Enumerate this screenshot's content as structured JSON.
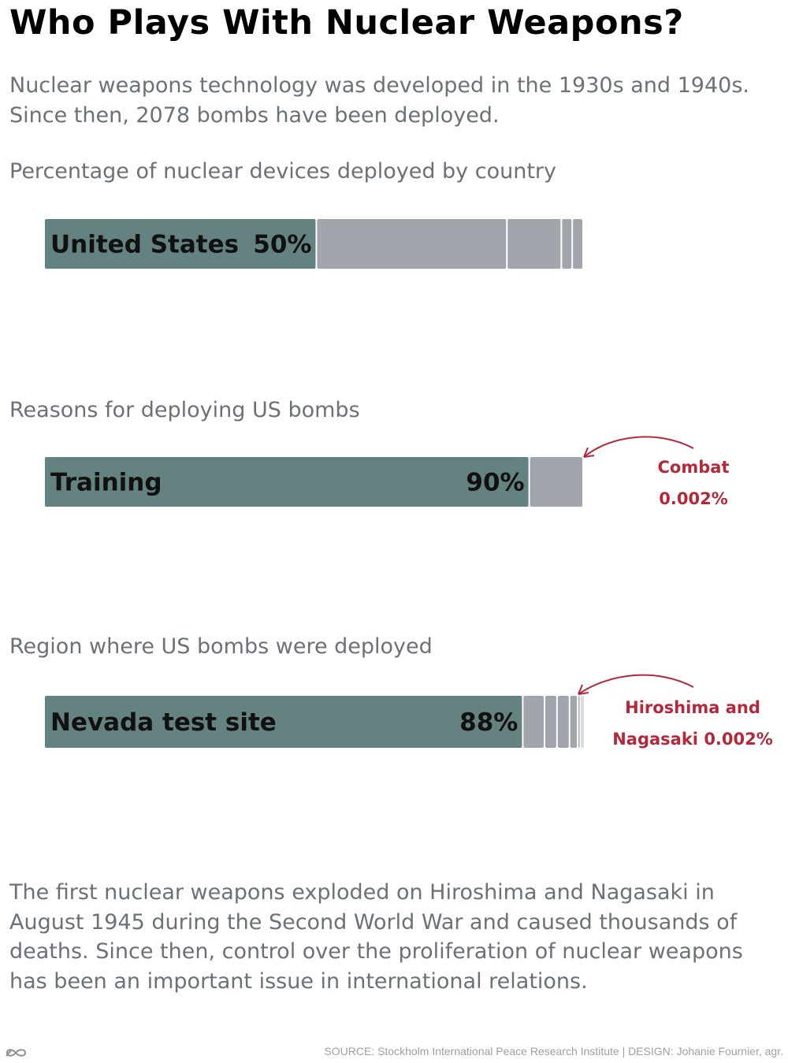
{
  "title": "Who Plays With Nuclear Weapons?",
  "intro": {
    "line1": "Nuclear weapons technology was developed in the 1930s and 1940s.",
    "line2": "Since then, 2078 bombs have been deployed."
  },
  "colors": {
    "highlight": "#64827f",
    "other": "#a0a6ab",
    "callout": "#b5283a"
  },
  "chart_data": [
    {
      "type": "bar",
      "title": "Percentage of nuclear devices deployed by country",
      "orientation": "horizontal-stacked",
      "series": [
        {
          "name": "United States",
          "value": 50,
          "value_label": "50%",
          "highlight": true
        },
        {
          "value": 35,
          "highlight": false
        },
        {
          "value": 10,
          "highlight": false
        },
        {
          "value": 2,
          "highlight": false
        },
        {
          "value": 2,
          "highlight": false
        }
      ]
    },
    {
      "type": "bar",
      "title": "Reasons for deploying US bombs",
      "orientation": "horizontal-stacked",
      "series": [
        {
          "name": "Training",
          "value": 90,
          "value_label": "90%",
          "highlight": true
        },
        {
          "value": 10,
          "highlight": false
        }
      ],
      "annotation": {
        "line1": "Combat",
        "line2": "0.002%"
      }
    },
    {
      "type": "bar",
      "title": "Region where US bombs were deployed",
      "orientation": "horizontal-stacked",
      "series": [
        {
          "name": "Nevada test site",
          "value": 88,
          "value_label": "88%",
          "highlight": true
        },
        {
          "value": 4,
          "highlight": false
        },
        {
          "value": 2.3,
          "highlight": false
        },
        {
          "value": 2.3,
          "highlight": false
        },
        {
          "value": 1.5,
          "highlight": false
        },
        {
          "value": 0.5,
          "highlight": false
        },
        {
          "value": 0.3,
          "highlight": false
        },
        {
          "value": 0.2,
          "highlight": false
        }
      ],
      "annotation": {
        "line1": "Hiroshima and",
        "line2": "Nagasaki 0.002%"
      }
    }
  ],
  "outro": {
    "line1": "The first nuclear weapons exploded on Hiroshima and Nagasaki in",
    "line2": "August 1945 during the Second World War and caused thousands of",
    "line3": "deaths. Since then, control over the proliferation of nuclear weapons",
    "line4": "has been an important issue in international relations."
  },
  "footer": {
    "text": "SOURCE:  Stockholm International Peace Research Institute  |  DESIGN: Johanie Fournier, agr.",
    "logo_icon": "infinity-logo-icon"
  }
}
